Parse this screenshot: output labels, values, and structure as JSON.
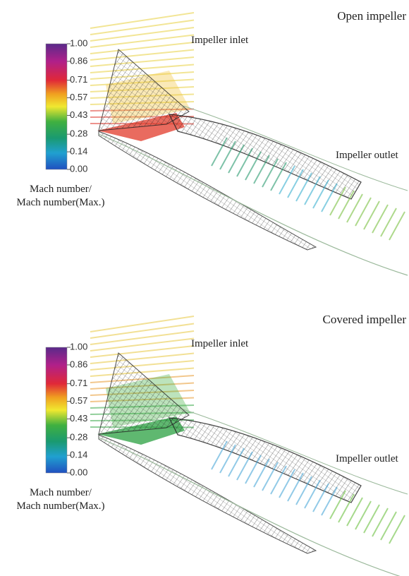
{
  "panels": [
    {
      "title": "Open impeller",
      "inlet_label": "Impeller inlet",
      "outlet_label": "Impeller outlet",
      "colorbar": {
        "label_lines": [
          "Mach number/",
          "Mach number(Max.)"
        ],
        "range": [
          0,
          1
        ],
        "ticks": [
          {
            "value": 1,
            "label": "1.00"
          },
          0.86,
          0.71,
          0.57,
          0.43,
          0.28,
          0.14,
          {
            "value": 0,
            "label": "0.00"
          }
        ]
      }
    },
    {
      "title": "Covered impeller",
      "inlet_label": "Impeller inlet",
      "outlet_label": "Impeller outlet",
      "colorbar": {
        "label_lines": [
          "Mach number/",
          "Mach number(Max.)"
        ],
        "range": [
          0,
          1
        ],
        "ticks": [
          {
            "value": 1,
            "label": "1.00"
          },
          0.86,
          0.71,
          0.57,
          0.43,
          0.28,
          0.14,
          {
            "value": 0,
            "label": "0.00"
          }
        ]
      }
    }
  ]
}
